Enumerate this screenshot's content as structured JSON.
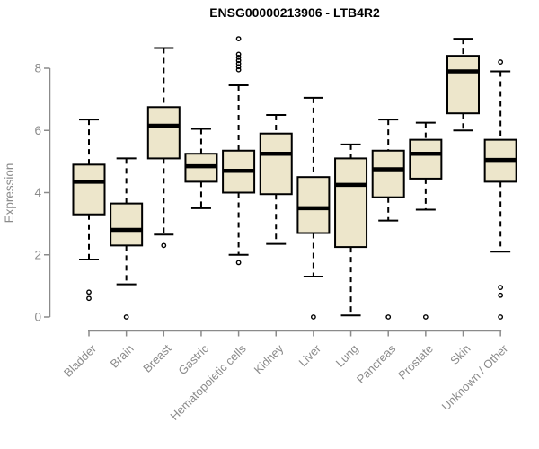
{
  "chart_data": {
    "type": "boxplot",
    "title": "ENSG00000213906 - LTB4R2",
    "ylabel": "Expression",
    "xlabel": "",
    "ylim": [
      0,
      9
    ],
    "y_ticks": [
      0,
      2,
      4,
      6,
      8
    ],
    "grid": "off",
    "legend": "none",
    "categories": [
      "Bladder",
      "Brain",
      "Breast",
      "Gastric",
      "Hematopoietic cells",
      "Kidney",
      "Liver",
      "Lung",
      "Pancreas",
      "Prostate",
      "Skin",
      "Unknown / Other"
    ],
    "series": [
      {
        "name": "Bladder",
        "low": 1.85,
        "q1": 3.3,
        "median": 4.35,
        "q3": 4.9,
        "high": 6.35,
        "outliers": [
          0.8,
          0.6
        ]
      },
      {
        "name": "Brain",
        "low": 1.05,
        "q1": 2.3,
        "median": 2.8,
        "q3": 3.65,
        "high": 5.1,
        "outliers": [
          0
        ]
      },
      {
        "name": "Breast",
        "low": 2.65,
        "q1": 5.1,
        "median": 6.15,
        "q3": 6.75,
        "high": 8.65,
        "outliers": [
          2.3
        ]
      },
      {
        "name": "Gastric",
        "low": 3.5,
        "q1": 4.35,
        "median": 4.85,
        "q3": 5.25,
        "high": 6.05,
        "outliers": []
      },
      {
        "name": "Hematopoietic cells",
        "low": 2.0,
        "q1": 4.0,
        "median": 4.7,
        "q3": 5.35,
        "high": 7.45,
        "outliers": [
          8.95,
          8.45,
          8.35,
          8.25,
          8.15,
          8.05,
          7.95,
          1.75
        ]
      },
      {
        "name": "Kidney",
        "low": 2.35,
        "q1": 3.95,
        "median": 5.25,
        "q3": 5.9,
        "high": 6.5,
        "outliers": []
      },
      {
        "name": "Liver",
        "low": 1.3,
        "q1": 2.7,
        "median": 3.5,
        "q3": 4.5,
        "high": 7.05,
        "outliers": [
          0
        ]
      },
      {
        "name": "Lung",
        "low": 0.05,
        "q1": 2.25,
        "median": 4.25,
        "q3": 5.1,
        "high": 5.55,
        "outliers": []
      },
      {
        "name": "Pancreas",
        "low": 3.1,
        "q1": 3.85,
        "median": 4.75,
        "q3": 5.35,
        "high": 6.35,
        "outliers": [
          0
        ]
      },
      {
        "name": "Prostate",
        "low": 3.45,
        "q1": 4.45,
        "median": 5.25,
        "q3": 5.7,
        "high": 6.25,
        "outliers": [
          0
        ]
      },
      {
        "name": "Skin",
        "low": 6.0,
        "q1": 6.55,
        "median": 7.9,
        "q3": 8.4,
        "high": 8.95,
        "outliers": []
      },
      {
        "name": "Unknown / Other",
        "low": 2.1,
        "q1": 4.35,
        "median": 5.05,
        "q3": 5.7,
        "high": 7.9,
        "outliers": [
          8.2,
          0.95,
          0.7,
          0
        ]
      }
    ],
    "colors": {
      "box_fill": "#EDE6CB",
      "box_border": "#000000",
      "median": "#000000",
      "whisker": "#000000",
      "axis": "#8B8B8B",
      "title": "#000000",
      "background": "#FFFFFF"
    }
  }
}
